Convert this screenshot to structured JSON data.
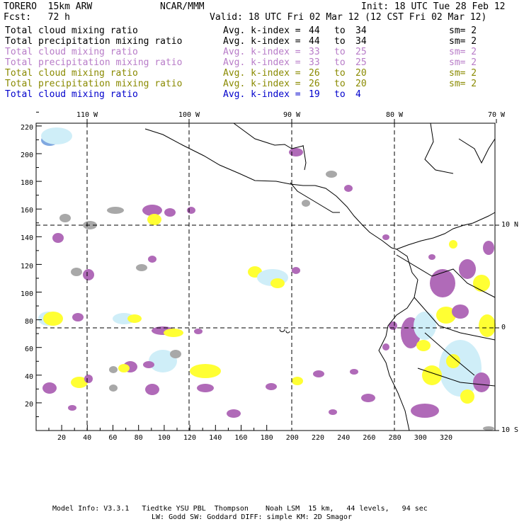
{
  "header": {
    "model": "TORERO  15km ARW",
    "org": "NCAR/MMM",
    "init": "Init: 18 UTC Tue 28 Feb 12",
    "fcst": "Fcst:   72 h",
    "valid": "Valid: 18 UTC Fri 02 Mar 12 (12 CST Fri 02 Mar 12)"
  },
  "legend": [
    {
      "field": "Total cloud mixing ratio",
      "stat": "Avg. k-index = ",
      "from": "44",
      "to_word": "to",
      "to": "34",
      "sm": "sm= 2",
      "color": "#000000"
    },
    {
      "field": "Total precipitation mixing ratio",
      "stat": "Avg. k-index = ",
      "from": "44",
      "to_word": "to",
      "to": "34",
      "sm": "sm= 2",
      "color": "#000000"
    },
    {
      "field": "Total cloud mixing ratio",
      "stat": "Avg. k-index = ",
      "from": "33",
      "to_word": "to",
      "to": "25",
      "sm": "sm= 2",
      "color": "#b87cc8"
    },
    {
      "field": "Total precipitation mixing ratio",
      "stat": "Avg. k-index = ",
      "from": "33",
      "to_word": "to",
      "to": "25",
      "sm": "sm= 2",
      "color": "#b87cc8"
    },
    {
      "field": "Total cloud mixing ratio",
      "stat": "Avg. k-index = ",
      "from": "26",
      "to_word": "to",
      "to": "20",
      "sm": "sm= 2",
      "color": "#8a8a00"
    },
    {
      "field": "Total precipitation mixing ratio",
      "stat": "Avg. k-index = ",
      "from": "26",
      "to_word": "to",
      "to": "20",
      "sm": "sm= 2",
      "color": "#8a8a00"
    },
    {
      "field": "Total cloud mixing ratio",
      "stat": "Avg. k-index = ",
      "from": "19",
      "to_word": "to",
      "to": "4",
      "sm": "",
      "color": "#0000cc"
    }
  ],
  "axes": {
    "top_labels": [
      "110 W",
      "100 W",
      "90 W",
      "80 W",
      "70 W"
    ],
    "right_labels": [
      "10 N",
      "0",
      "10 S"
    ],
    "left_ticks": [
      "220",
      "200",
      "180",
      "160",
      "140",
      "120",
      "100",
      "80",
      "60",
      "40",
      "20"
    ],
    "bottom_ticks": [
      "20",
      "40",
      "60",
      "80",
      "100",
      "120",
      "140",
      "160",
      "180",
      "200",
      "220",
      "240",
      "260",
      "280",
      "300",
      "320"
    ]
  },
  "footer": {
    "line1": "Model Info: V3.3.1   Tiedtke YSU PBL  Thompson    Noah LSM  15 km,   44 levels,   94 sec",
    "line2": "LW: Godd SW: Goddard DIFF: simple KM: 2D Smagor"
  },
  "colors": {
    "grey": "#a8a8a8",
    "purple": "#b06ab8",
    "yellow": "#ffff33",
    "lightblue": "#cfeef8",
    "blue": "#80a8e0",
    "line": "#000000"
  },
  "icons": {
    "coastline": "coastline-shape",
    "grid": "dashed-gridline"
  }
}
